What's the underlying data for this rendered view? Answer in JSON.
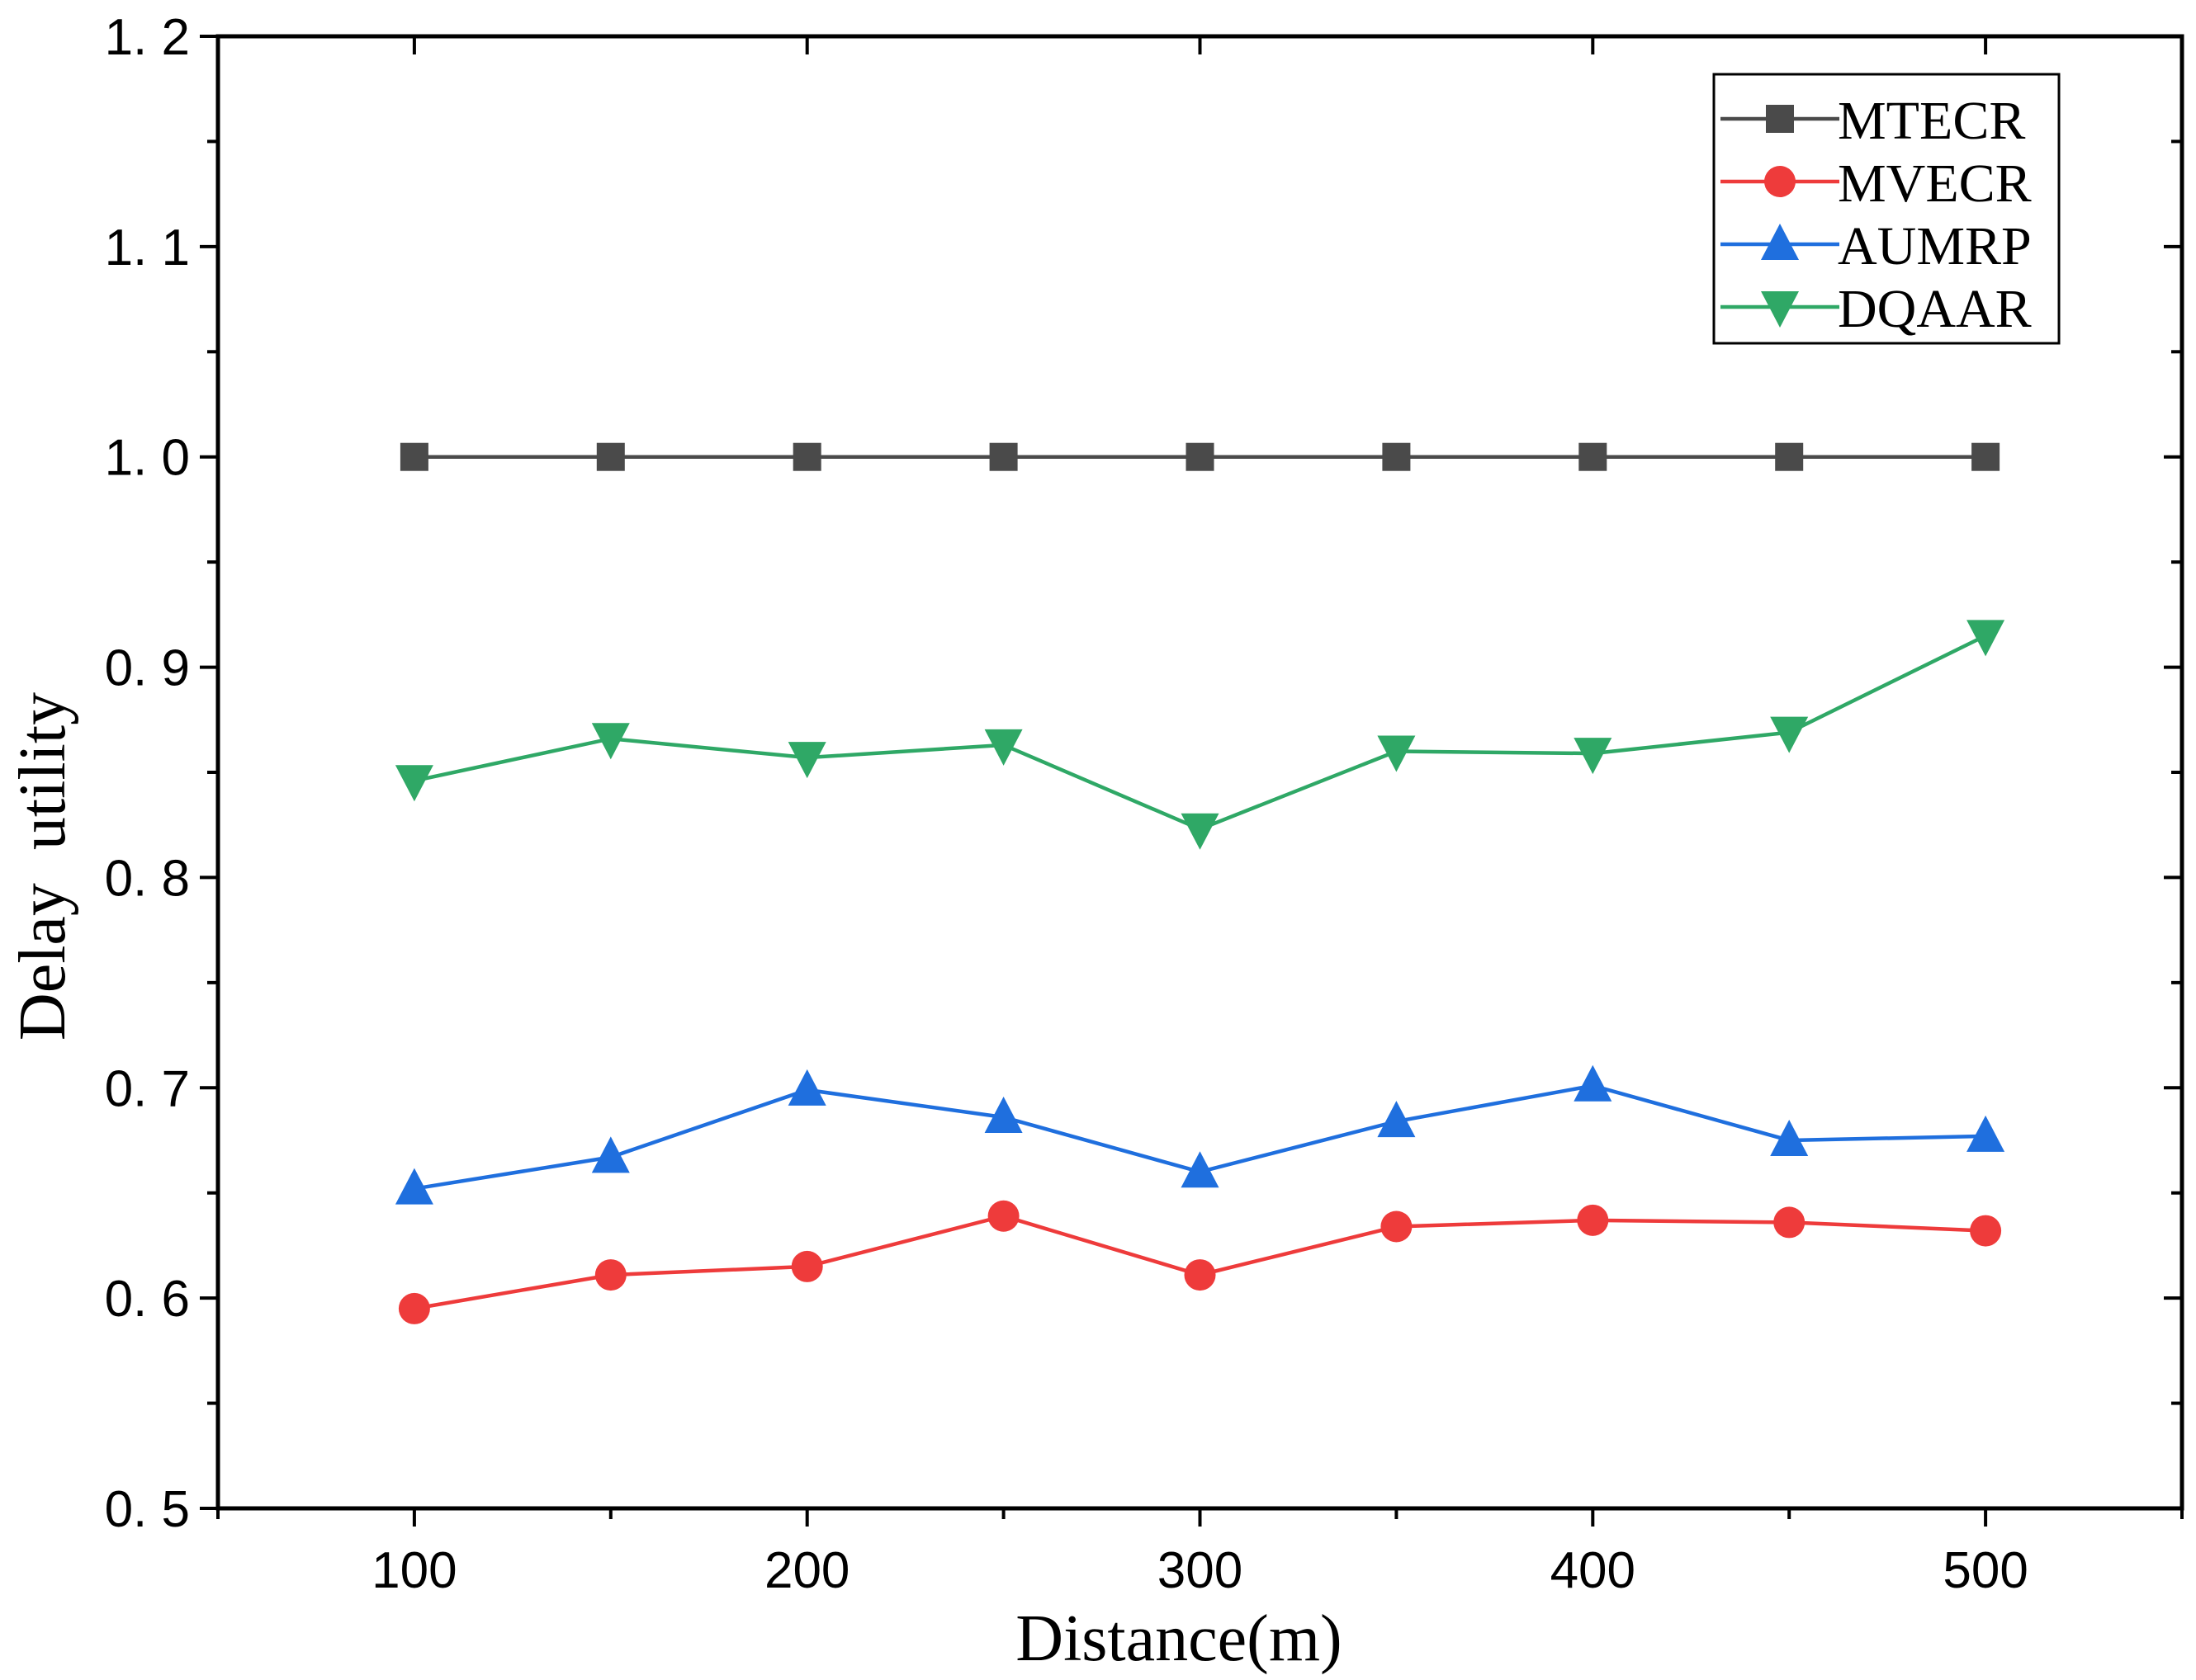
{
  "chart_data": {
    "type": "line",
    "title": "",
    "xlabel": "Distance(m)",
    "ylabel": "Delay  utility",
    "x": [
      100,
      150,
      200,
      250,
      300,
      350,
      400,
      450,
      500
    ],
    "xlim": [
      50,
      550
    ],
    "ylim": [
      0.5,
      1.2
    ],
    "x_ticks": [
      100,
      200,
      300,
      400,
      500
    ],
    "x_tick_labels": [
      "100",
      "200",
      "300",
      "400",
      "500"
    ],
    "y_ticks": [
      0.5,
      0.6,
      0.7,
      0.8,
      0.9,
      1.0,
      1.1,
      1.2
    ],
    "y_tick_labels": [
      "0. 5",
      "0. 6",
      "0. 7",
      "0. 8",
      "0. 9",
      "1. 0",
      "1. 1",
      "1. 2"
    ],
    "grid": false,
    "legend_position": "top-right",
    "series": [
      {
        "name": "MTECR",
        "marker": "square",
        "color": "#4a4a4a",
        "values": [
          1.0,
          1.0,
          1.0,
          1.0,
          1.0,
          1.0,
          1.0,
          1.0,
          1.0
        ]
      },
      {
        "name": "MVECR",
        "marker": "circle",
        "color": "#ee3b3b",
        "values": [
          0.595,
          0.611,
          0.615,
          0.639,
          0.611,
          0.634,
          0.637,
          0.636,
          0.632
        ]
      },
      {
        "name": "AUMRP",
        "marker": "triangle-up",
        "color": "#1f6fde",
        "values": [
          0.652,
          0.667,
          0.699,
          0.686,
          0.66,
          0.684,
          0.701,
          0.675,
          0.677
        ]
      },
      {
        "name": "DQAAR",
        "marker": "triangle-down",
        "color": "#2fa866",
        "values": [
          0.846,
          0.866,
          0.857,
          0.863,
          0.823,
          0.86,
          0.859,
          0.869,
          0.915
        ]
      }
    ]
  }
}
